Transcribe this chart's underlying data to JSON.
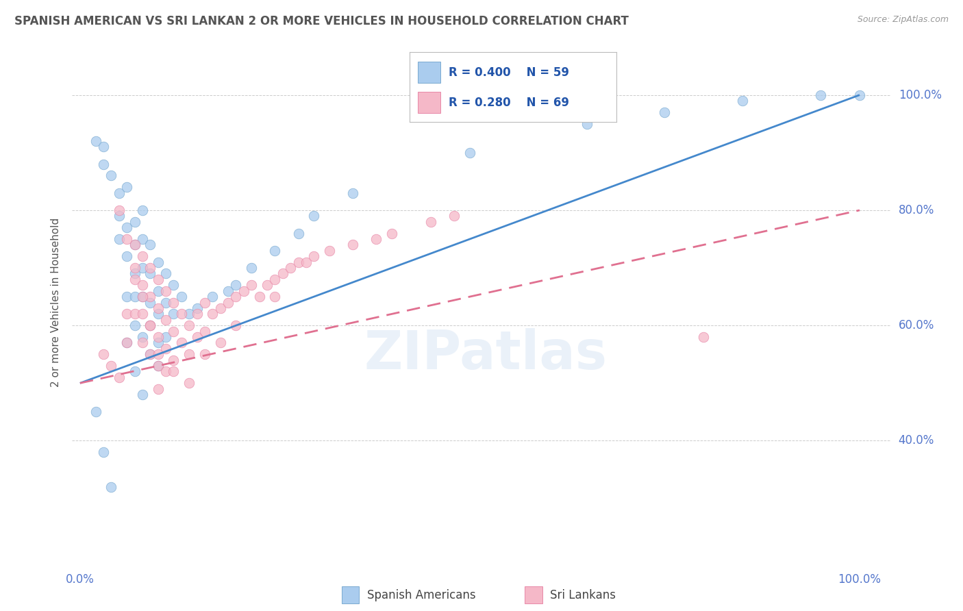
{
  "title": "SPANISH AMERICAN VS SRI LANKAN 2 OR MORE VEHICLES IN HOUSEHOLD CORRELATION CHART",
  "source": "Source: ZipAtlas.com",
  "ylabel": "2 or more Vehicles in Household",
  "watermark": "ZIPatlas",
  "legend_r1": "R = 0.400",
  "legend_n1": "N = 59",
  "legend_r2": "R = 0.280",
  "legend_n2": "N = 69",
  "legend_label1": "Spanish Americans",
  "legend_label2": "Sri Lankans",
  "color_blue": "#aaccee",
  "color_pink": "#f5b8c8",
  "color_blue_edge": "#7aaad0",
  "color_pink_edge": "#e888a8",
  "color_blue_line": "#4488cc",
  "color_pink_line": "#e07090",
  "title_color": "#555555",
  "source_color": "#999999",
  "ytick_color": "#5577cc",
  "xtick_color": "#5577cc",
  "grid_color": "#cccccc",
  "blue_x": [
    2,
    3,
    3,
    4,
    5,
    5,
    5,
    6,
    6,
    6,
    6,
    7,
    7,
    7,
    7,
    7,
    8,
    8,
    8,
    8,
    8,
    9,
    9,
    9,
    9,
    9,
    10,
    10,
    10,
    10,
    10,
    11,
    11,
    11,
    12,
    12,
    13,
    14,
    15,
    17,
    19,
    20,
    22,
    25,
    28,
    30,
    35,
    50,
    65,
    75,
    85,
    95,
    100,
    2,
    3,
    4,
    6,
    7,
    8
  ],
  "blue_y": [
    92,
    91,
    88,
    86,
    83,
    79,
    75,
    84,
    77,
    72,
    65,
    78,
    74,
    69,
    65,
    60,
    80,
    75,
    70,
    65,
    58,
    74,
    69,
    64,
    60,
    55,
    71,
    66,
    62,
    57,
    53,
    69,
    64,
    58,
    67,
    62,
    65,
    62,
    63,
    65,
    66,
    67,
    70,
    73,
    76,
    79,
    83,
    90,
    95,
    97,
    99,
    100,
    100,
    45,
    38,
    32,
    57,
    52,
    48
  ],
  "pink_x": [
    3,
    4,
    5,
    6,
    6,
    7,
    7,
    7,
    8,
    8,
    8,
    8,
    9,
    9,
    9,
    9,
    10,
    10,
    10,
    10,
    10,
    11,
    11,
    11,
    11,
    12,
    12,
    12,
    13,
    13,
    14,
    14,
    15,
    15,
    16,
    16,
    17,
    18,
    19,
    20,
    21,
    22,
    23,
    24,
    25,
    26,
    27,
    28,
    29,
    30,
    32,
    35,
    38,
    40,
    45,
    48,
    80,
    5,
    6,
    7,
    8,
    9,
    10,
    12,
    14,
    16,
    18,
    20,
    25
  ],
  "pink_y": [
    55,
    53,
    51,
    62,
    57,
    74,
    68,
    62,
    72,
    67,
    62,
    57,
    70,
    65,
    60,
    55,
    68,
    63,
    58,
    53,
    49,
    66,
    61,
    56,
    52,
    64,
    59,
    54,
    62,
    57,
    60,
    55,
    62,
    58,
    64,
    59,
    62,
    63,
    64,
    65,
    66,
    67,
    65,
    67,
    68,
    69,
    70,
    71,
    71,
    72,
    73,
    74,
    75,
    76,
    78,
    79,
    58,
    80,
    75,
    70,
    65,
    60,
    55,
    52,
    50,
    55,
    57,
    60,
    65
  ]
}
